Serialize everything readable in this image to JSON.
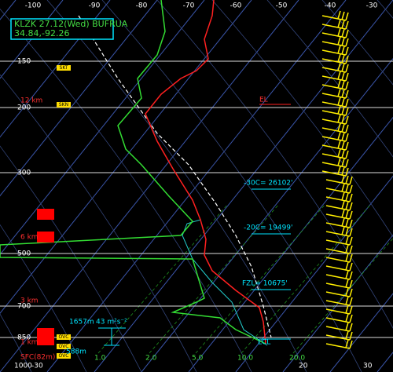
{
  "header": {
    "station": "KLZK 27.12(Wed) BUFRUA",
    "location": "34.84,-92.26"
  },
  "top_axis": [
    "-100",
    "-90",
    "-80",
    "-70",
    "-60",
    "-50",
    "-40",
    "-30"
  ],
  "pressure_labels": [
    "150",
    "200",
    "300",
    "500",
    "700",
    "850",
    "1000"
  ],
  "height_labels": [
    "12 km",
    "6 km",
    "3 km",
    "1 km",
    "SFC(82m)"
  ],
  "cloud_labels": [
    "SKT",
    "SKN",
    "OVC",
    "OVC",
    "OVC"
  ],
  "levels": {
    "el": "EL",
    "minus30": "-30C= 26102'",
    "minus20": "-20C= 19499'",
    "fzl": "FZL= 10675'",
    "lcl": "LCL"
  },
  "hodograph": {
    "top": "1657m",
    "helicity": "43 m²s⁻²",
    "bottom": "588m"
  },
  "mixing_ratio": [
    "1.0",
    "2.0",
    "5.0",
    "10.0",
    "20.0"
  ],
  "bottom_axis": [
    "-30",
    "20",
    "30"
  ]
}
